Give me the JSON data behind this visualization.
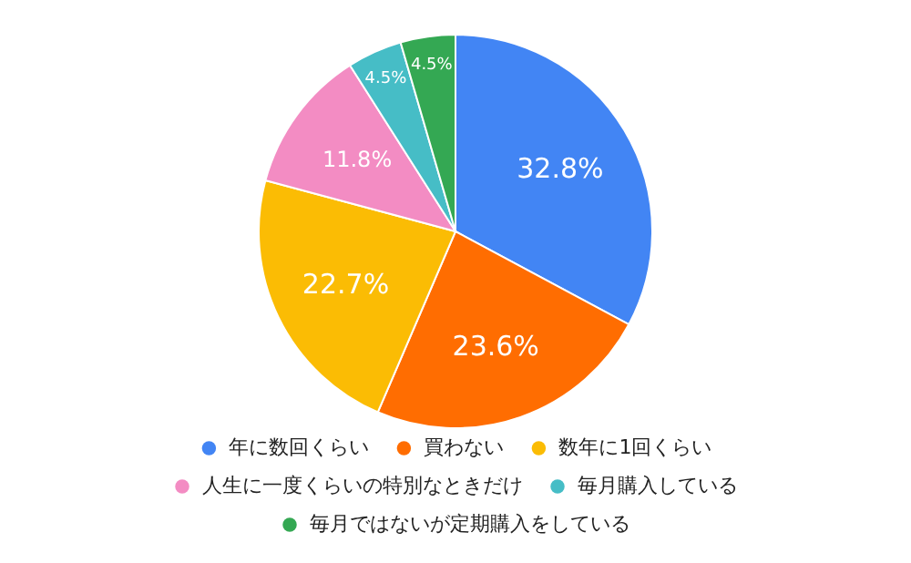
{
  "chart_data": {
    "type": "pie",
    "categories": [
      "年に数回くらい",
      "買わない",
      "数年に1回くらい",
      "人生に一度くらいの特別なときだけ",
      "毎月購入している",
      "毎月ではないが定期購入をしている"
    ],
    "values": [
      32.8,
      23.6,
      22.7,
      11.8,
      4.5,
      4.5
    ],
    "value_labels": [
      "32.8%",
      "23.6%",
      "22.7%",
      "11.8%",
      "4.5%",
      "4.5%"
    ],
    "colors": [
      "#4285f4",
      "#ff6d01",
      "#fbbc04",
      "#f38cc3",
      "#46bdc6",
      "#34a853"
    ],
    "legend": "bottom"
  }
}
